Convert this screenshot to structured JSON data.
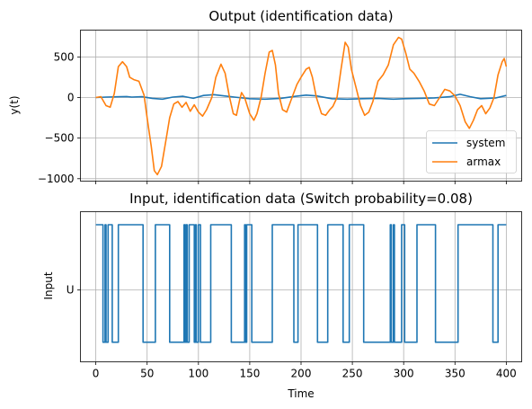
{
  "colors": {
    "system": "#1f77b4",
    "armax": "#ff7f0e",
    "input": "#1f77b4",
    "grid": "#b0b0b0",
    "axes": "#000000"
  },
  "chart_data": [
    {
      "type": "line",
      "title": "Output (identification data)",
      "xlabel": "",
      "ylabel": "y(t)",
      "xlim": [
        -15,
        415
      ],
      "ylim": [
        -1030,
        830
      ],
      "xticks": [
        0,
        50,
        100,
        150,
        200,
        250,
        300,
        350,
        400
      ],
      "xtick_labels_visible": false,
      "yticks": [
        500,
        0,
        -500,
        -1000
      ],
      "ytick_labels": [
        "500",
        "0",
        "−500",
        "−1000"
      ],
      "grid": true,
      "legend": {
        "placement": "lower right",
        "entries": [
          "system",
          "armax"
        ]
      },
      "series": [
        {
          "name": "system",
          "color": "#1f77b4",
          "points": [
            [
              0,
              0
            ],
            [
              10,
              5
            ],
            [
              20,
              8
            ],
            [
              30,
              12
            ],
            [
              35,
              5
            ],
            [
              45,
              10
            ],
            [
              55,
              -10
            ],
            [
              65,
              -20
            ],
            [
              75,
              5
            ],
            [
              85,
              15
            ],
            [
              95,
              -10
            ],
            [
              105,
              25
            ],
            [
              115,
              35
            ],
            [
              125,
              20
            ],
            [
              135,
              5
            ],
            [
              150,
              -15
            ],
            [
              165,
              -20
            ],
            [
              180,
              -10
            ],
            [
              195,
              15
            ],
            [
              205,
              30
            ],
            [
              215,
              20
            ],
            [
              230,
              -15
            ],
            [
              245,
              -20
            ],
            [
              260,
              -15
            ],
            [
              275,
              -10
            ],
            [
              290,
              -20
            ],
            [
              300,
              -15
            ],
            [
              315,
              -10
            ],
            [
              330,
              -5
            ],
            [
              345,
              10
            ],
            [
              355,
              40
            ],
            [
              365,
              10
            ],
            [
              375,
              -15
            ],
            [
              390,
              -5
            ],
            [
              400,
              25
            ]
          ]
        },
        {
          "name": "armax",
          "color": "#ff7f0e",
          "points": [
            [
              0,
              0
            ],
            [
              5,
              10
            ],
            [
              10,
              -100
            ],
            [
              14,
              -120
            ],
            [
              18,
              50
            ],
            [
              22,
              380
            ],
            [
              26,
              440
            ],
            [
              30,
              380
            ],
            [
              33,
              250
            ],
            [
              37,
              220
            ],
            [
              42,
              200
            ],
            [
              47,
              30
            ],
            [
              50,
              -250
            ],
            [
              54,
              -600
            ],
            [
              57,
              -900
            ],
            [
              60,
              -950
            ],
            [
              64,
              -850
            ],
            [
              68,
              -550
            ],
            [
              72,
              -250
            ],
            [
              76,
              -80
            ],
            [
              80,
              -50
            ],
            [
              84,
              -120
            ],
            [
              88,
              -60
            ],
            [
              92,
              -170
            ],
            [
              96,
              -90
            ],
            [
              100,
              -180
            ],
            [
              104,
              -230
            ],
            [
              108,
              -150
            ],
            [
              113,
              0
            ],
            [
              117,
              250
            ],
            [
              122,
              410
            ],
            [
              126,
              300
            ],
            [
              130,
              20
            ],
            [
              134,
              -200
            ],
            [
              137,
              -220
            ],
            [
              140,
              -40
            ],
            [
              142,
              60
            ],
            [
              145,
              0
            ],
            [
              150,
              -200
            ],
            [
              154,
              -280
            ],
            [
              157,
              -200
            ],
            [
              161,
              0
            ],
            [
              165,
              300
            ],
            [
              169,
              560
            ],
            [
              172,
              580
            ],
            [
              175,
              400
            ],
            [
              178,
              50
            ],
            [
              182,
              -150
            ],
            [
              186,
              -180
            ],
            [
              190,
              -40
            ],
            [
              196,
              160
            ],
            [
              200,
              250
            ],
            [
              205,
              350
            ],
            [
              208,
              370
            ],
            [
              211,
              250
            ],
            [
              215,
              0
            ],
            [
              220,
              -200
            ],
            [
              224,
              -220
            ],
            [
              228,
              -150
            ],
            [
              231,
              -110
            ],
            [
              235,
              0
            ],
            [
              239,
              350
            ],
            [
              243,
              680
            ],
            [
              246,
              620
            ],
            [
              249,
              350
            ],
            [
              254,
              100
            ],
            [
              258,
              -100
            ],
            [
              262,
              -220
            ],
            [
              266,
              -180
            ],
            [
              270,
              -50
            ],
            [
              275,
              200
            ],
            [
              280,
              280
            ],
            [
              285,
              400
            ],
            [
              290,
              650
            ],
            [
              295,
              740
            ],
            [
              298,
              720
            ],
            [
              302,
              550
            ],
            [
              306,
              350
            ],
            [
              310,
              300
            ],
            [
              315,
              200
            ],
            [
              320,
              80
            ],
            [
              325,
              -80
            ],
            [
              330,
              -100
            ],
            [
              335,
              0
            ],
            [
              340,
              100
            ],
            [
              345,
              80
            ],
            [
              350,
              20
            ],
            [
              355,
              -100
            ],
            [
              360,
              -300
            ],
            [
              364,
              -380
            ],
            [
              368,
              -280
            ],
            [
              372,
              -150
            ],
            [
              376,
              -100
            ],
            [
              380,
              -200
            ],
            [
              384,
              -130
            ],
            [
              388,
              0
            ],
            [
              392,
              280
            ],
            [
              396,
              440
            ],
            [
              398,
              480
            ],
            [
              400,
              380
            ]
          ]
        }
      ]
    },
    {
      "type": "line",
      "title": "Input, identification data (Switch probability=0.08)",
      "xlabel": "Time",
      "ylabel": "Input",
      "xlim": [
        -15,
        415
      ],
      "ylim": [
        -1.1,
        1.2
      ],
      "xticks": [
        0,
        50,
        100,
        150,
        200,
        250,
        300,
        350,
        400
      ],
      "xtick_labels": [
        "0",
        "50",
        "100",
        "150",
        "200",
        "250",
        "300",
        "350",
        "400"
      ],
      "yticks": [
        0
      ],
      "ytick_labels": [
        "U"
      ],
      "grid": true,
      "series": [
        {
          "name": "",
          "color": "#1f77b4",
          "levels": [
            1,
            -0.8
          ],
          "switch_times": [
            7,
            9,
            10,
            12,
            16,
            22,
            46,
            58,
            72,
            86,
            87,
            88,
            89,
            91,
            96,
            97,
            98,
            100,
            102,
            112,
            132,
            145,
            146,
            147,
            152,
            172,
            193,
            197,
            216,
            226,
            241,
            247,
            261,
            287,
            288,
            290,
            291,
            298,
            301,
            313,
            331,
            353,
            387,
            392
          ],
          "start_level": 1,
          "end_time": 400
        }
      ]
    }
  ]
}
